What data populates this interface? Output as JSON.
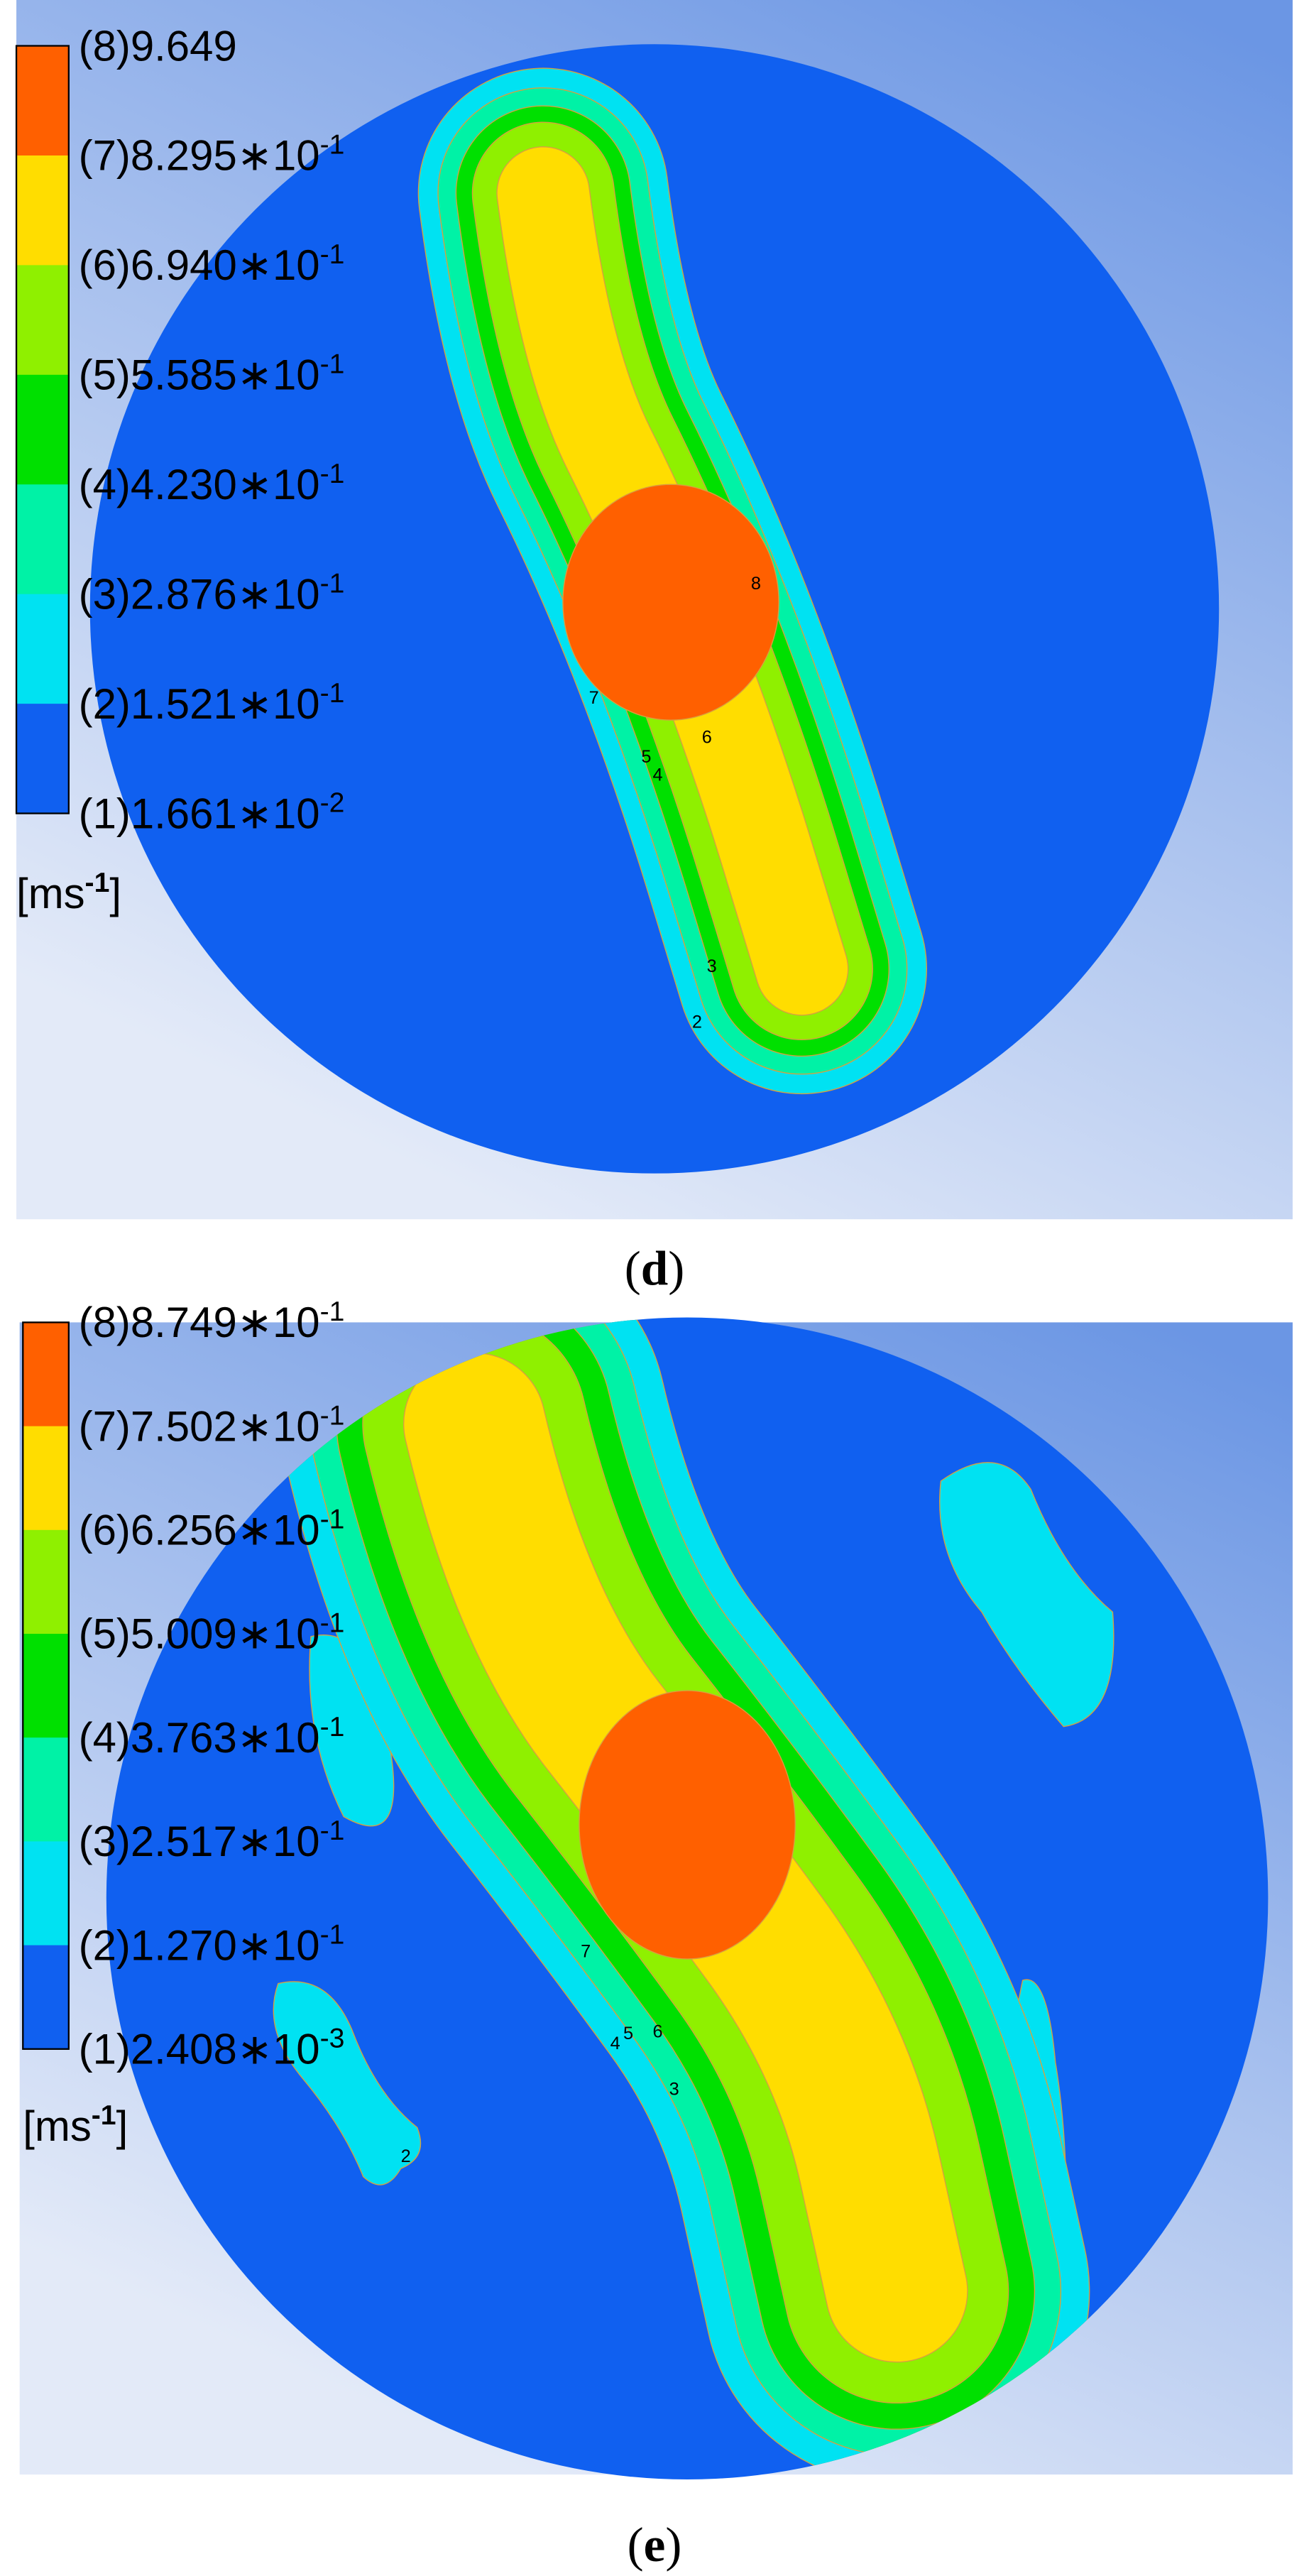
{
  "panels": [
    {
      "legend": {
        "levels": [
          {
            "label": "(8)9.649"
          },
          {
            "label": "(7)8.295∗10",
            "exponent": "-1"
          },
          {
            "label": "(6)6.940∗10",
            "exponent": "-1"
          },
          {
            "label": "(5)5.585∗10",
            "exponent": "-1"
          },
          {
            "label": "(4)4.230∗10",
            "exponent": "-1"
          },
          {
            "label": "(3)2.876∗10",
            "exponent": "-1"
          },
          {
            "label": "(2)1.521∗10",
            "exponent": "-1"
          },
          {
            "label": "(1)1.661∗10",
            "exponent": "-2"
          }
        ],
        "colors": [
          "#ff6000",
          "#ffdd00",
          "#8ff000",
          "#00e000",
          "#00f2a6",
          "#00e2f2",
          "#1060f0"
        ],
        "unit": {
          "base": "[ms",
          "exponent": "-1",
          "close": "]"
        }
      },
      "contour_labels": [
        "8",
        "7",
        "6",
        "5",
        "4",
        "3",
        "2"
      ],
      "caption": {
        "open": "(",
        "letter": "d",
        "close": ")"
      }
    },
    {
      "legend": {
        "levels": [
          {
            "label": "(8)8.749∗10",
            "exponent": "-1"
          },
          {
            "label": "(7)7.502∗10",
            "exponent": "-1"
          },
          {
            "label": "(6)6.256∗10",
            "exponent": "-1"
          },
          {
            "label": "(5)5.009∗10",
            "exponent": "-1"
          },
          {
            "label": "(4)3.763∗10",
            "exponent": "-1"
          },
          {
            "label": "(3)2.517∗10",
            "exponent": "-1"
          },
          {
            "label": "(2)1.270∗10",
            "exponent": "-1"
          },
          {
            "label": "(1)2.408∗10",
            "exponent": "-3"
          }
        ],
        "colors": [
          "#ff6000",
          "#ffdd00",
          "#8ff000",
          "#00e000",
          "#00f2a6",
          "#00e2f2",
          "#1060f0"
        ],
        "unit": {
          "base": "[ms",
          "exponent": "-1",
          "close": "]"
        }
      },
      "contour_labels": [
        "7",
        "6",
        "5",
        "4",
        "3",
        "2"
      ],
      "caption": {
        "open": "(",
        "letter": "e",
        "close": ")"
      }
    }
  ]
}
